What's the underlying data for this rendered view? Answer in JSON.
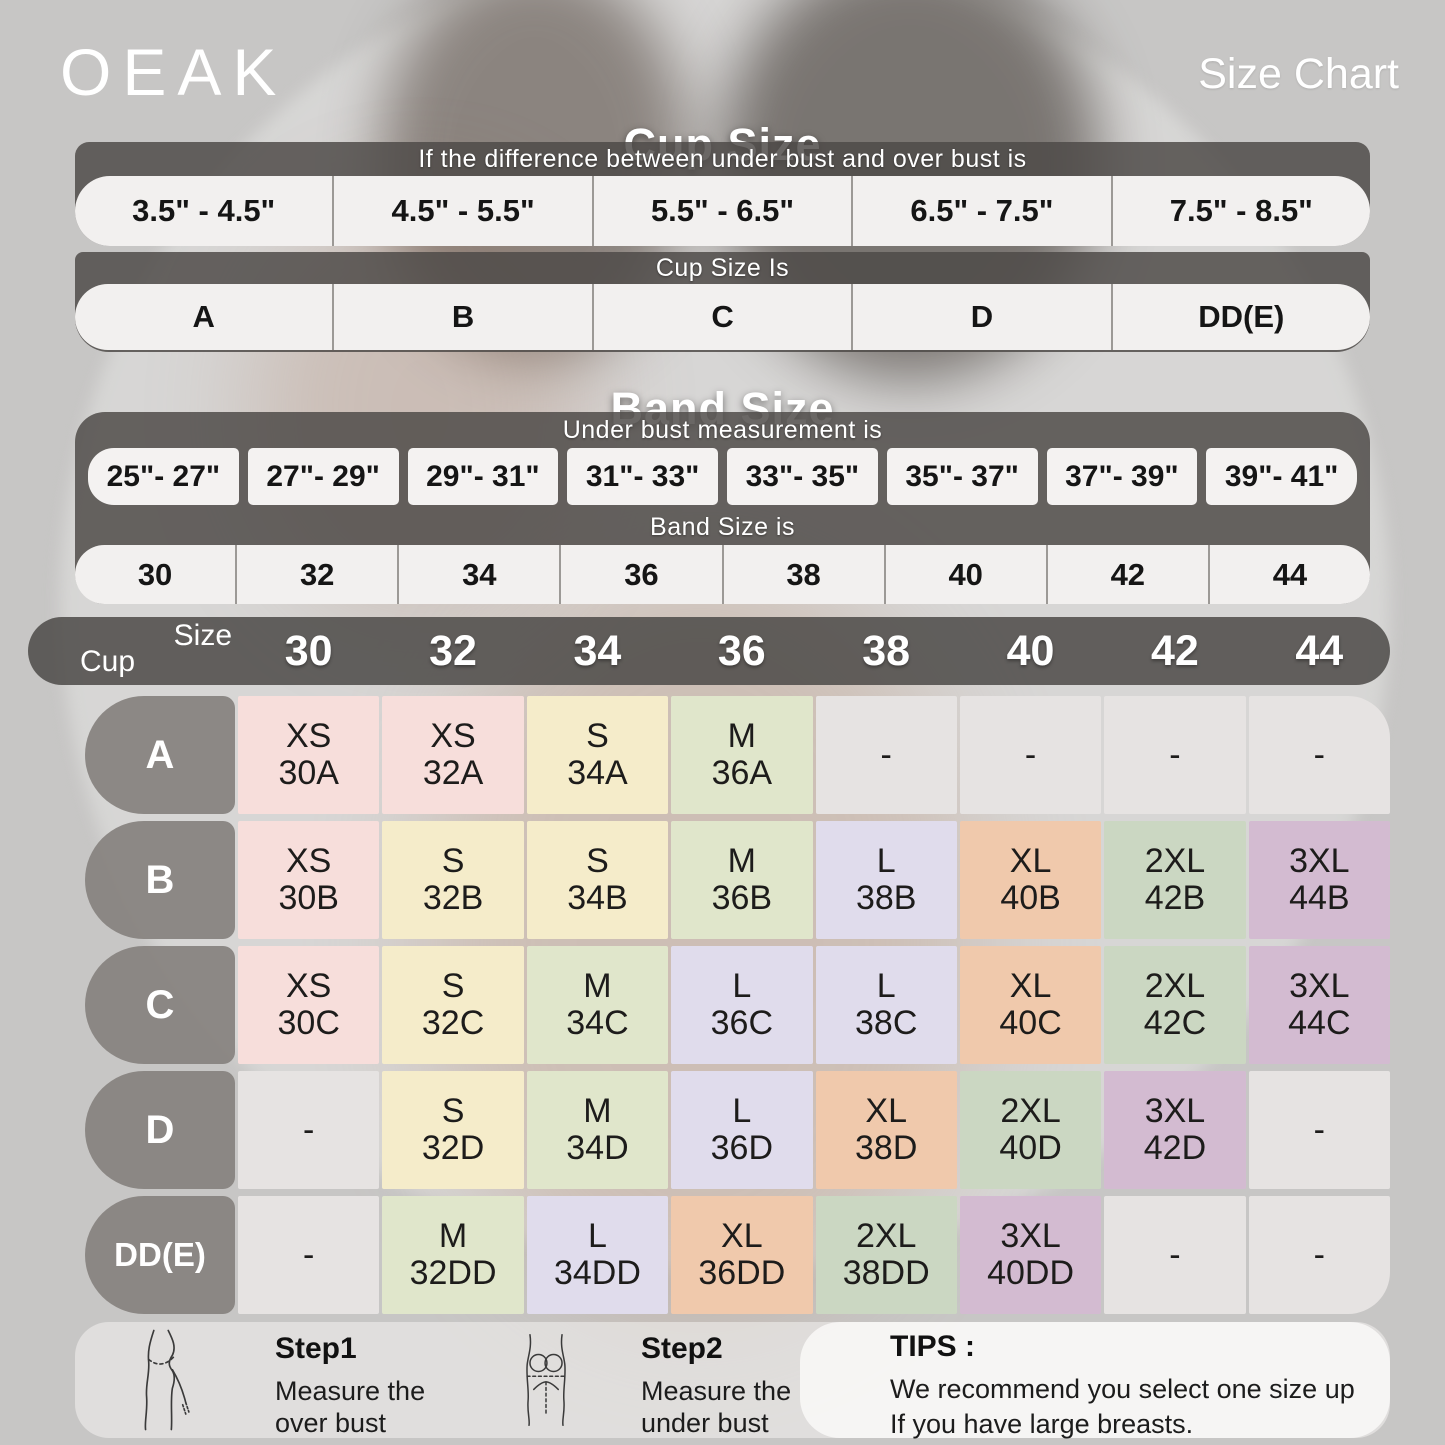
{
  "header": {
    "brand": "OEAK",
    "title": "Size Chart"
  },
  "chart_data": [
    {
      "type": "table",
      "title": "Cup Size",
      "note": "If the  difference between under bust and over bust is",
      "columns": [
        "3.5\" - 4.5\"",
        "4.5\" - 5.5\"",
        "5.5\" - 6.5\"",
        "6.5\" - 7.5\"",
        "7.5\" - 8.5\""
      ],
      "result_label": "Cup Size Is",
      "values": [
        "A",
        "B",
        "C",
        "D",
        "DD(E)"
      ]
    },
    {
      "type": "table",
      "title": "Band Size",
      "note": "Under bust measurement is",
      "columns": [
        "25\"- 27\"",
        "27\"- 29\"",
        "29\"- 31\"",
        "31\"- 33\"",
        "33\"- 35\"",
        "35\"- 37\"",
        "37\"- 39\"",
        "39\"- 41\""
      ],
      "result_label": "Band Size is",
      "values": [
        "30",
        "32",
        "34",
        "36",
        "38",
        "40",
        "42",
        "44"
      ]
    },
    {
      "type": "table",
      "corner": {
        "top": "Size",
        "bottom": "Cup"
      },
      "columns": [
        "30",
        "32",
        "34",
        "36",
        "38",
        "40",
        "42",
        "44"
      ],
      "row_labels": [
        "A",
        "B",
        "C",
        "D",
        "DD(E)"
      ],
      "rows": [
        [
          {
            "size": "XS",
            "band": "30A",
            "color": "pink"
          },
          {
            "size": "XS",
            "band": "32A",
            "color": "pink"
          },
          {
            "size": "S",
            "band": "34A",
            "color": "cream"
          },
          {
            "size": "M",
            "band": "36A",
            "color": "green_light"
          },
          {
            "size": "-",
            "band": "",
            "color": "gray"
          },
          {
            "size": "-",
            "band": "",
            "color": "gray"
          },
          {
            "size": "-",
            "band": "",
            "color": "gray"
          },
          {
            "size": "-",
            "band": "",
            "color": "gray"
          }
        ],
        [
          {
            "size": "XS",
            "band": "30B",
            "color": "pink"
          },
          {
            "size": "S",
            "band": "32B",
            "color": "cream"
          },
          {
            "size": "S",
            "band": "34B",
            "color": "cream"
          },
          {
            "size": "M",
            "band": "36B",
            "color": "green_light"
          },
          {
            "size": "L",
            "band": "38B",
            "color": "lavender"
          },
          {
            "size": "XL",
            "band": "40B",
            "color": "peach"
          },
          {
            "size": "2XL",
            "band": "42B",
            "color": "green"
          },
          {
            "size": "3XL",
            "band": "44B",
            "color": "purple"
          }
        ],
        [
          {
            "size": "XS",
            "band": "30C",
            "color": "pink"
          },
          {
            "size": "S",
            "band": "32C",
            "color": "cream"
          },
          {
            "size": "M",
            "band": "34C",
            "color": "green_light"
          },
          {
            "size": "L",
            "band": "36C",
            "color": "lavender"
          },
          {
            "size": "L",
            "band": "38C",
            "color": "lavender"
          },
          {
            "size": "XL",
            "band": "40C",
            "color": "peach"
          },
          {
            "size": "2XL",
            "band": "42C",
            "color": "green"
          },
          {
            "size": "3XL",
            "band": "44C",
            "color": "purple"
          }
        ],
        [
          {
            "size": "-",
            "band": "",
            "color": "gray"
          },
          {
            "size": "S",
            "band": "32D",
            "color": "cream"
          },
          {
            "size": "M",
            "band": "34D",
            "color": "green_light"
          },
          {
            "size": "L",
            "band": "36D",
            "color": "lavender"
          },
          {
            "size": "XL",
            "band": "38D",
            "color": "peach"
          },
          {
            "size": "2XL",
            "band": "40D",
            "color": "green"
          },
          {
            "size": "3XL",
            "band": "42D",
            "color": "purple"
          },
          {
            "size": "-",
            "band": "",
            "color": "gray"
          }
        ],
        [
          {
            "size": "-",
            "band": "",
            "color": "gray"
          },
          {
            "size": "M",
            "band": "32DD",
            "color": "green_light"
          },
          {
            "size": "L",
            "band": "34DD",
            "color": "lavender"
          },
          {
            "size": "XL",
            "band": "36DD",
            "color": "peach"
          },
          {
            "size": "2XL",
            "band": "38DD",
            "color": "green"
          },
          {
            "size": "3XL",
            "band": "40DD",
            "color": "purple"
          },
          {
            "size": "-",
            "band": "",
            "color": "gray"
          },
          {
            "size": "-",
            "band": "",
            "color": "gray"
          }
        ]
      ]
    }
  ],
  "footer": {
    "step1": {
      "title": "Step1",
      "line1": "Measure the",
      "line2": "over bust"
    },
    "step2": {
      "title": "Step2",
      "line1": "Measure the",
      "line2": "under bust"
    },
    "tips": {
      "title": "TIPS :",
      "line1": "We recommend you select one size up",
      "line2": "If you have large breasts."
    }
  },
  "colors": {
    "dark_bar": "#4d4a48",
    "row_label_gray": "#888481",
    "pill_bg": "#f2f0ef",
    "cell_pink": "#f7dedb",
    "cell_cream": "#f5ecca",
    "cell_green_light": "#e0e6cb",
    "cell_green": "#cbd7c2",
    "cell_lavender": "#e0dcec",
    "cell_peach": "#f0c9ac",
    "cell_purple": "#d3bbd1",
    "cell_gray": "#e6e3e2"
  }
}
